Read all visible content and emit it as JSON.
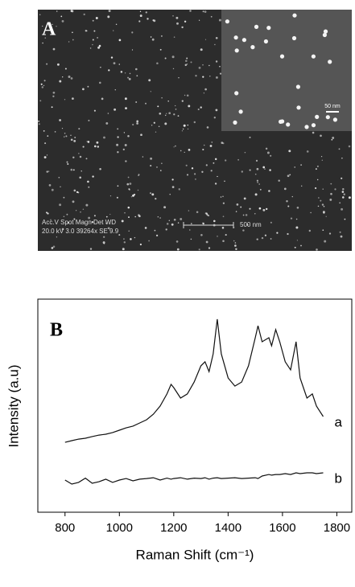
{
  "panel_a": {
    "label": "A",
    "inset_scale": "50 nm",
    "info_header": "Acc.V  Spot Magn   Det  WD",
    "info_values": "20.0 kV 3.0  39264x  SE   9.9",
    "scale_bar": "500 nm"
  },
  "chart_data": {
    "type": "line",
    "panel_label": "B",
    "x_label": "Raman Shift (cm⁻¹)",
    "y_label": "Intensity (a.u)",
    "x": [
      800,
      825,
      850,
      875,
      900,
      925,
      950,
      975,
      1000,
      1025,
      1050,
      1075,
      1100,
      1125,
      1150,
      1175,
      1190,
      1200,
      1225,
      1250,
      1275,
      1300,
      1315,
      1330,
      1345,
      1360,
      1375,
      1400,
      1425,
      1450,
      1475,
      1500,
      1510,
      1525,
      1550,
      1560,
      1575,
      1590,
      1610,
      1630,
      1650,
      1665,
      1690,
      1710,
      1725,
      1750
    ],
    "series": [
      {
        "name": "a",
        "color": "#111111",
        "values": [
          32.8,
          33.6,
          34.3,
          34.7,
          35.5,
          36.2,
          36.6,
          37.4,
          38.5,
          39.6,
          40.4,
          41.9,
          43.4,
          46.0,
          49.8,
          55.5,
          60.0,
          58.5,
          53.6,
          55.5,
          61.1,
          68.7,
          70.6,
          66.0,
          74.3,
          90.6,
          74.3,
          63.0,
          59.2,
          61.1,
          68.7,
          81.9,
          87.5,
          80.0,
          81.9,
          78.1,
          85.7,
          80.0,
          70.6,
          66.8,
          80.0,
          63.0,
          53.6,
          55.5,
          49.8,
          44.9
        ]
      },
      {
        "name": "b",
        "color": "#111111",
        "values": [
          15.1,
          13.2,
          14.0,
          16.0,
          13.6,
          14.3,
          15.5,
          14.0,
          15.1,
          15.8,
          14.7,
          15.5,
          15.8,
          16.2,
          15.1,
          16.0,
          15.5,
          15.8,
          16.2,
          15.5,
          16.0,
          15.8,
          16.2,
          15.5,
          16.0,
          16.2,
          15.8,
          16.0,
          16.2,
          15.8,
          16.0,
          16.2,
          15.8,
          17.0,
          17.7,
          17.4,
          17.7,
          17.7,
          18.1,
          17.7,
          18.5,
          18.1,
          18.5,
          18.5,
          18.1,
          18.5
        ]
      }
    ],
    "xlim": [
      700,
      1855
    ],
    "ylim": [
      0,
      100
    ],
    "xticks": [
      800,
      1000,
      1200,
      1400,
      1600,
      1800
    ]
  }
}
